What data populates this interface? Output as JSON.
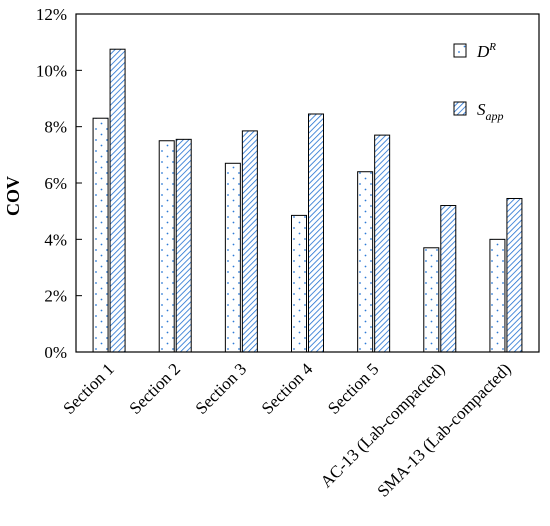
{
  "chart_data": {
    "type": "bar",
    "ylabel": "COV",
    "ylim": [
      0,
      12
    ],
    "yticks": [
      0,
      2,
      4,
      6,
      8,
      10,
      12
    ],
    "ytick_format": "percent",
    "grid": false,
    "legend_position": "top-right",
    "categories": [
      "Section 1",
      "Section 2",
      "Section 3",
      "Section 4",
      "Section 5",
      "AC-13 (Lab-compacted)",
      "SMA-13 (Lab-compacted)"
    ],
    "series": [
      {
        "name": "D^R",
        "legend_base": "D",
        "legend_sup": "R",
        "pattern": "dots",
        "values": [
          8.3,
          7.5,
          6.7,
          4.85,
          6.4,
          3.7,
          4.0
        ]
      },
      {
        "name": "S_app",
        "legend_base": "S",
        "legend_sub": "app",
        "pattern": "diagonal-hatch",
        "color": "#1f6fd1",
        "values": [
          10.75,
          7.55,
          7.85,
          8.45,
          7.7,
          5.2,
          5.45
        ]
      }
    ]
  }
}
